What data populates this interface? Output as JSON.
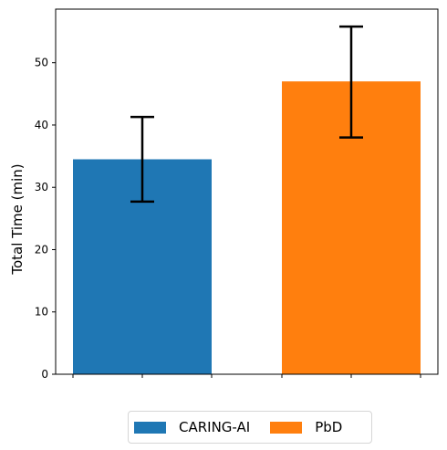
{
  "chart_data": {
    "type": "bar",
    "title": "",
    "xlabel": "",
    "ylabel": "Total Time (min)",
    "ylim": [
      0,
      58.6
    ],
    "yticks": [
      0,
      10,
      20,
      30,
      40,
      50
    ],
    "grid": false,
    "legend_position": "bottom-center (below axes)",
    "series": [
      {
        "name": "CARING-AI",
        "value": 34.5,
        "err_low": 27.7,
        "err_high": 41.3,
        "color": "#1f77b4"
      },
      {
        "name": "PbD",
        "value": 47.0,
        "err_low": 38.0,
        "err_high": 55.8,
        "color": "#ff7f0e"
      }
    ]
  }
}
